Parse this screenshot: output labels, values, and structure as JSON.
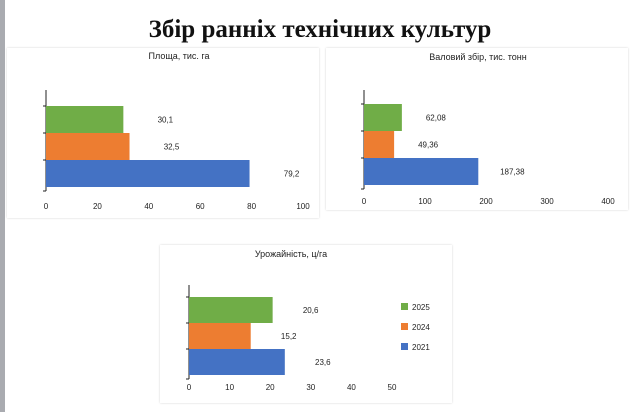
{
  "slide": {
    "title": "Збір ранніх технічних культур"
  },
  "legend": [
    {
      "label": "2025",
      "color": "#70ad47"
    },
    {
      "label": "2024",
      "color": "#ed7d31"
    },
    {
      "label": "2021",
      "color": "#4472c4"
    }
  ],
  "chart_data": [
    {
      "type": "bar",
      "orientation": "horizontal",
      "title": "Площа, тис. га",
      "categories": [
        "2025",
        "2024",
        "2021"
      ],
      "values": [
        30.1,
        32.5,
        79.2
      ],
      "value_labels": [
        "30,1",
        "32,5",
        "79,2"
      ],
      "colors": [
        "#70ad47",
        "#ed7d31",
        "#4472c4"
      ],
      "xlim": [
        0,
        100
      ],
      "xticks": [
        0,
        20,
        40,
        60,
        80,
        100
      ],
      "grid": false,
      "legend": "none"
    },
    {
      "type": "bar",
      "orientation": "horizontal",
      "title": "Валовий збір, тис. тонн",
      "categories": [
        "2025",
        "2024",
        "2021"
      ],
      "values": [
        62.08,
        49.36,
        187.38
      ],
      "value_labels": [
        "62,08",
        "49,36",
        "187,38"
      ],
      "colors": [
        "#70ad47",
        "#ed7d31",
        "#4472c4"
      ],
      "xlim": [
        0,
        400
      ],
      "xticks": [
        0,
        100,
        200,
        300,
        400
      ],
      "grid": false,
      "legend": "none"
    },
    {
      "type": "bar",
      "orientation": "horizontal",
      "title": "Урожайність, ц/га",
      "categories": [
        "2025",
        "2024",
        "2021"
      ],
      "values": [
        20.6,
        15.2,
        23.6
      ],
      "value_labels": [
        "20,6",
        "15,2",
        "23,6"
      ],
      "colors": [
        "#70ad47",
        "#ed7d31",
        "#4472c4"
      ],
      "xlim": [
        0,
        50
      ],
      "xticks": [
        0,
        10,
        20,
        30,
        40,
        50
      ],
      "grid": false,
      "legend": "right"
    }
  ]
}
